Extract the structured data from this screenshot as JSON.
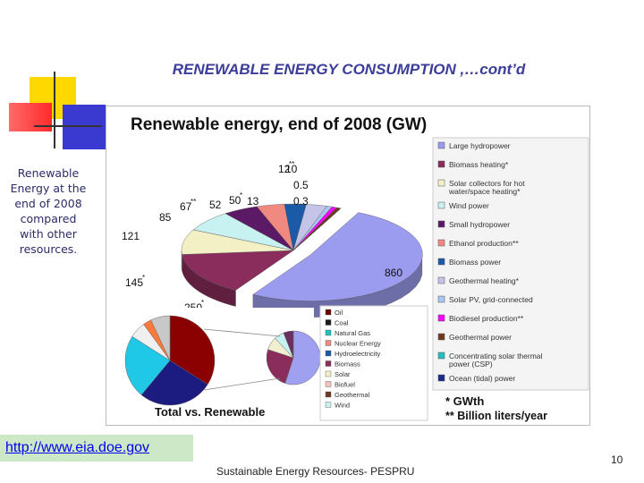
{
  "slide": {
    "title": "RENEWABLE ENERGY CONSUMPTION ,…cont’d",
    "side_text_lines": [
      "Renewable",
      "Energy at the",
      "end of 2008",
      "compared",
      "with other",
      "resources."
    ],
    "link": "http://www.eia.doe.gov",
    "footer": "Sustainable Energy Resources- PESPRU",
    "page_number": "10"
  },
  "chart_data": [
    {
      "type": "pie",
      "title": "Renewable energy, end of 2008 (GW)",
      "footnotes": [
        "* GWth",
        "** Billion liters/year"
      ],
      "slices": [
        {
          "label": "Large hydropower",
          "value": 860,
          "value_label": "860",
          "color": "#9b9bef"
        },
        {
          "label": "Biomass heating*",
          "value": 250,
          "value_label": "250",
          "color": "#8a2c5c",
          "marker": "*"
        },
        {
          "label": "Solar collectors for hot water/space heating*",
          "value": 145,
          "value_label": "145",
          "color": "#f2f0c4",
          "marker": "*"
        },
        {
          "label": "Wind power",
          "value": 121,
          "value_label": "121",
          "color": "#c8f2f2"
        },
        {
          "label": "Small hydropower",
          "value": 85,
          "value_label": "85",
          "color": "#5c1a66"
        },
        {
          "label": "Ethanol production**",
          "value": 67,
          "value_label": "67",
          "color": "#f08a80",
          "marker": "**"
        },
        {
          "label": "Biomass power",
          "value": 52,
          "value_label": "52",
          "color": "#1b5aa6"
        },
        {
          "label": "Geothermal heating*",
          "value": 50,
          "value_label": "50",
          "color": "#c4c4e8",
          "marker": "*"
        },
        {
          "label": "Solar PV, grid-connected",
          "value": 13,
          "value_label": "13",
          "color": "#a8c8f0"
        },
        {
          "label": "Biodiesel production**",
          "value": 12,
          "value_label": "12",
          "color": "#ff00ff",
          "marker": "**"
        },
        {
          "label": "Geothermal power",
          "value": 10,
          "value_label": "10",
          "color": "#6e3a1e"
        },
        {
          "label": "Concentrating solar thermal power (CSP)",
          "value": 0.5,
          "value_label": "0.5",
          "color": "#20c0c0"
        },
        {
          "label": "Ocean (tidal) power",
          "value": 0.3,
          "value_label": "0.3",
          "color": "#1a2a8a"
        }
      ]
    },
    {
      "type": "pie",
      "title": "Total vs. Renewable",
      "categories": [
        "Oil",
        "Coal",
        "Natural Gas",
        "Nuclear Energy",
        "Hydroelectricity",
        "Biomass",
        "Solar",
        "Biofuel",
        "Geothermal",
        "Wind"
      ],
      "left_pie_values": [
        34,
        27,
        23,
        6,
        3,
        7
      ],
      "left_pie_colors": [
        "#8b0000",
        "#1b1b80",
        "#20c8e8",
        "#f0f0f0",
        "#ff7a3a",
        "#c8c8c8"
      ],
      "right_pie_values": [
        55,
        25,
        8,
        6,
        6
      ],
      "right_pie_colors": [
        "#a0a0f0",
        "#8a2c5c",
        "#f0f0d0",
        "#c8f2f2",
        "#6a3060"
      ],
      "legend_colors": [
        "#6b0000",
        "#1b1b1b",
        "#20c0c0",
        "#f08a80",
        "#1b5aa6",
        "#8a2c5c",
        "#f2f0c4",
        "#f5c0c0",
        "#6e3a1e",
        "#c8f2f2"
      ]
    }
  ]
}
